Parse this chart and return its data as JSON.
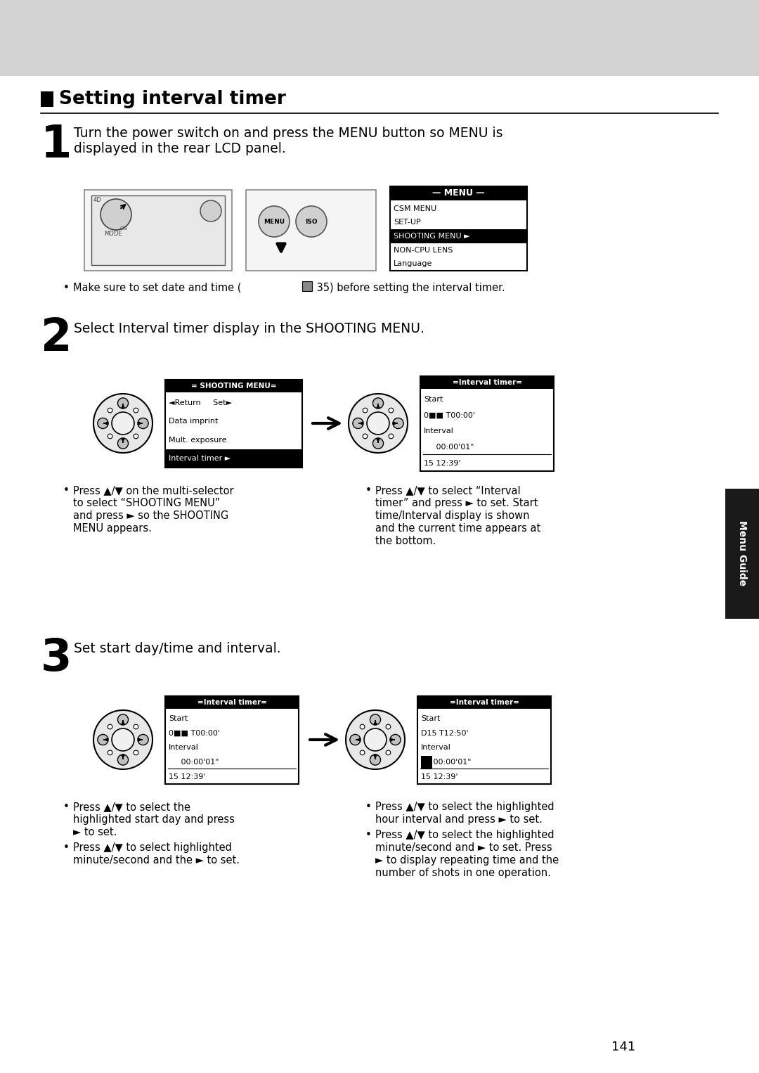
{
  "bg_color": "#ffffff",
  "header_bg": "#d3d3d3",
  "title": "Setting interval timer",
  "step1_text_line1": "Turn the power switch on and press the MENU button so MENU is",
  "step1_text_line2": "displayed in the rear LCD panel.",
  "note1_line1": "Make sure to set date and time (",
  "note1_line2": " 35) before setting the interval timer.",
  "step2_text": "Select Interval timer display in the SHOOTING MENU.",
  "step3_text": "Set start day/time and interval.",
  "menu_items": [
    "CSM MENU",
    "SET-UP",
    "SHOOTING MENU",
    "NON-CPU LENS",
    "Language"
  ],
  "menu_highlight": 2,
  "sm_items": [
    "Return     Set",
    "Data imprint",
    "Mult. exposure",
    "Interval timer"
  ],
  "sm_highlight": 3,
  "it1_lines": [
    "Start",
    "0   T00:00'",
    "Interval",
    "     00:00'01\"",
    "15 12:39'"
  ],
  "it2_lines": [
    "Start",
    "D15 T12:50'",
    "Interval",
    "     00:00'01\"",
    "15 12:39'"
  ],
  "s2_left_bullets": [
    "Press ▲/▼ on the multi-selector",
    "to select “SHOOTING MENU”",
    "and press ► so the SHOOTING",
    "MENU appears."
  ],
  "s2_right_bullets": [
    "Press ▲/▼ to select “Interval",
    "timer” and press ► to set. Start",
    "time/Interval display is shown",
    "and the current time appears at",
    "the bottom."
  ],
  "s3_left_bullets1": [
    "Press ▲/▼ to select the",
    "highlighted start day and press",
    "► to set."
  ],
  "s3_left_bullets2": [
    "Press ▲/▼ to select highlighted",
    "minute/second and the ► to set."
  ],
  "s3_right_bullets1": [
    "Press ▲/▼ to select the highlighted",
    "hour interval and press ► to set."
  ],
  "s3_right_bullets2": [
    "Press ▲/▼ to select the highlighted",
    "minute/second and ► to set. Press",
    "► to display repeating time and the",
    "number of shots in one operation."
  ],
  "page_number": "141",
  "menu_guide_label": "Menu Guide"
}
